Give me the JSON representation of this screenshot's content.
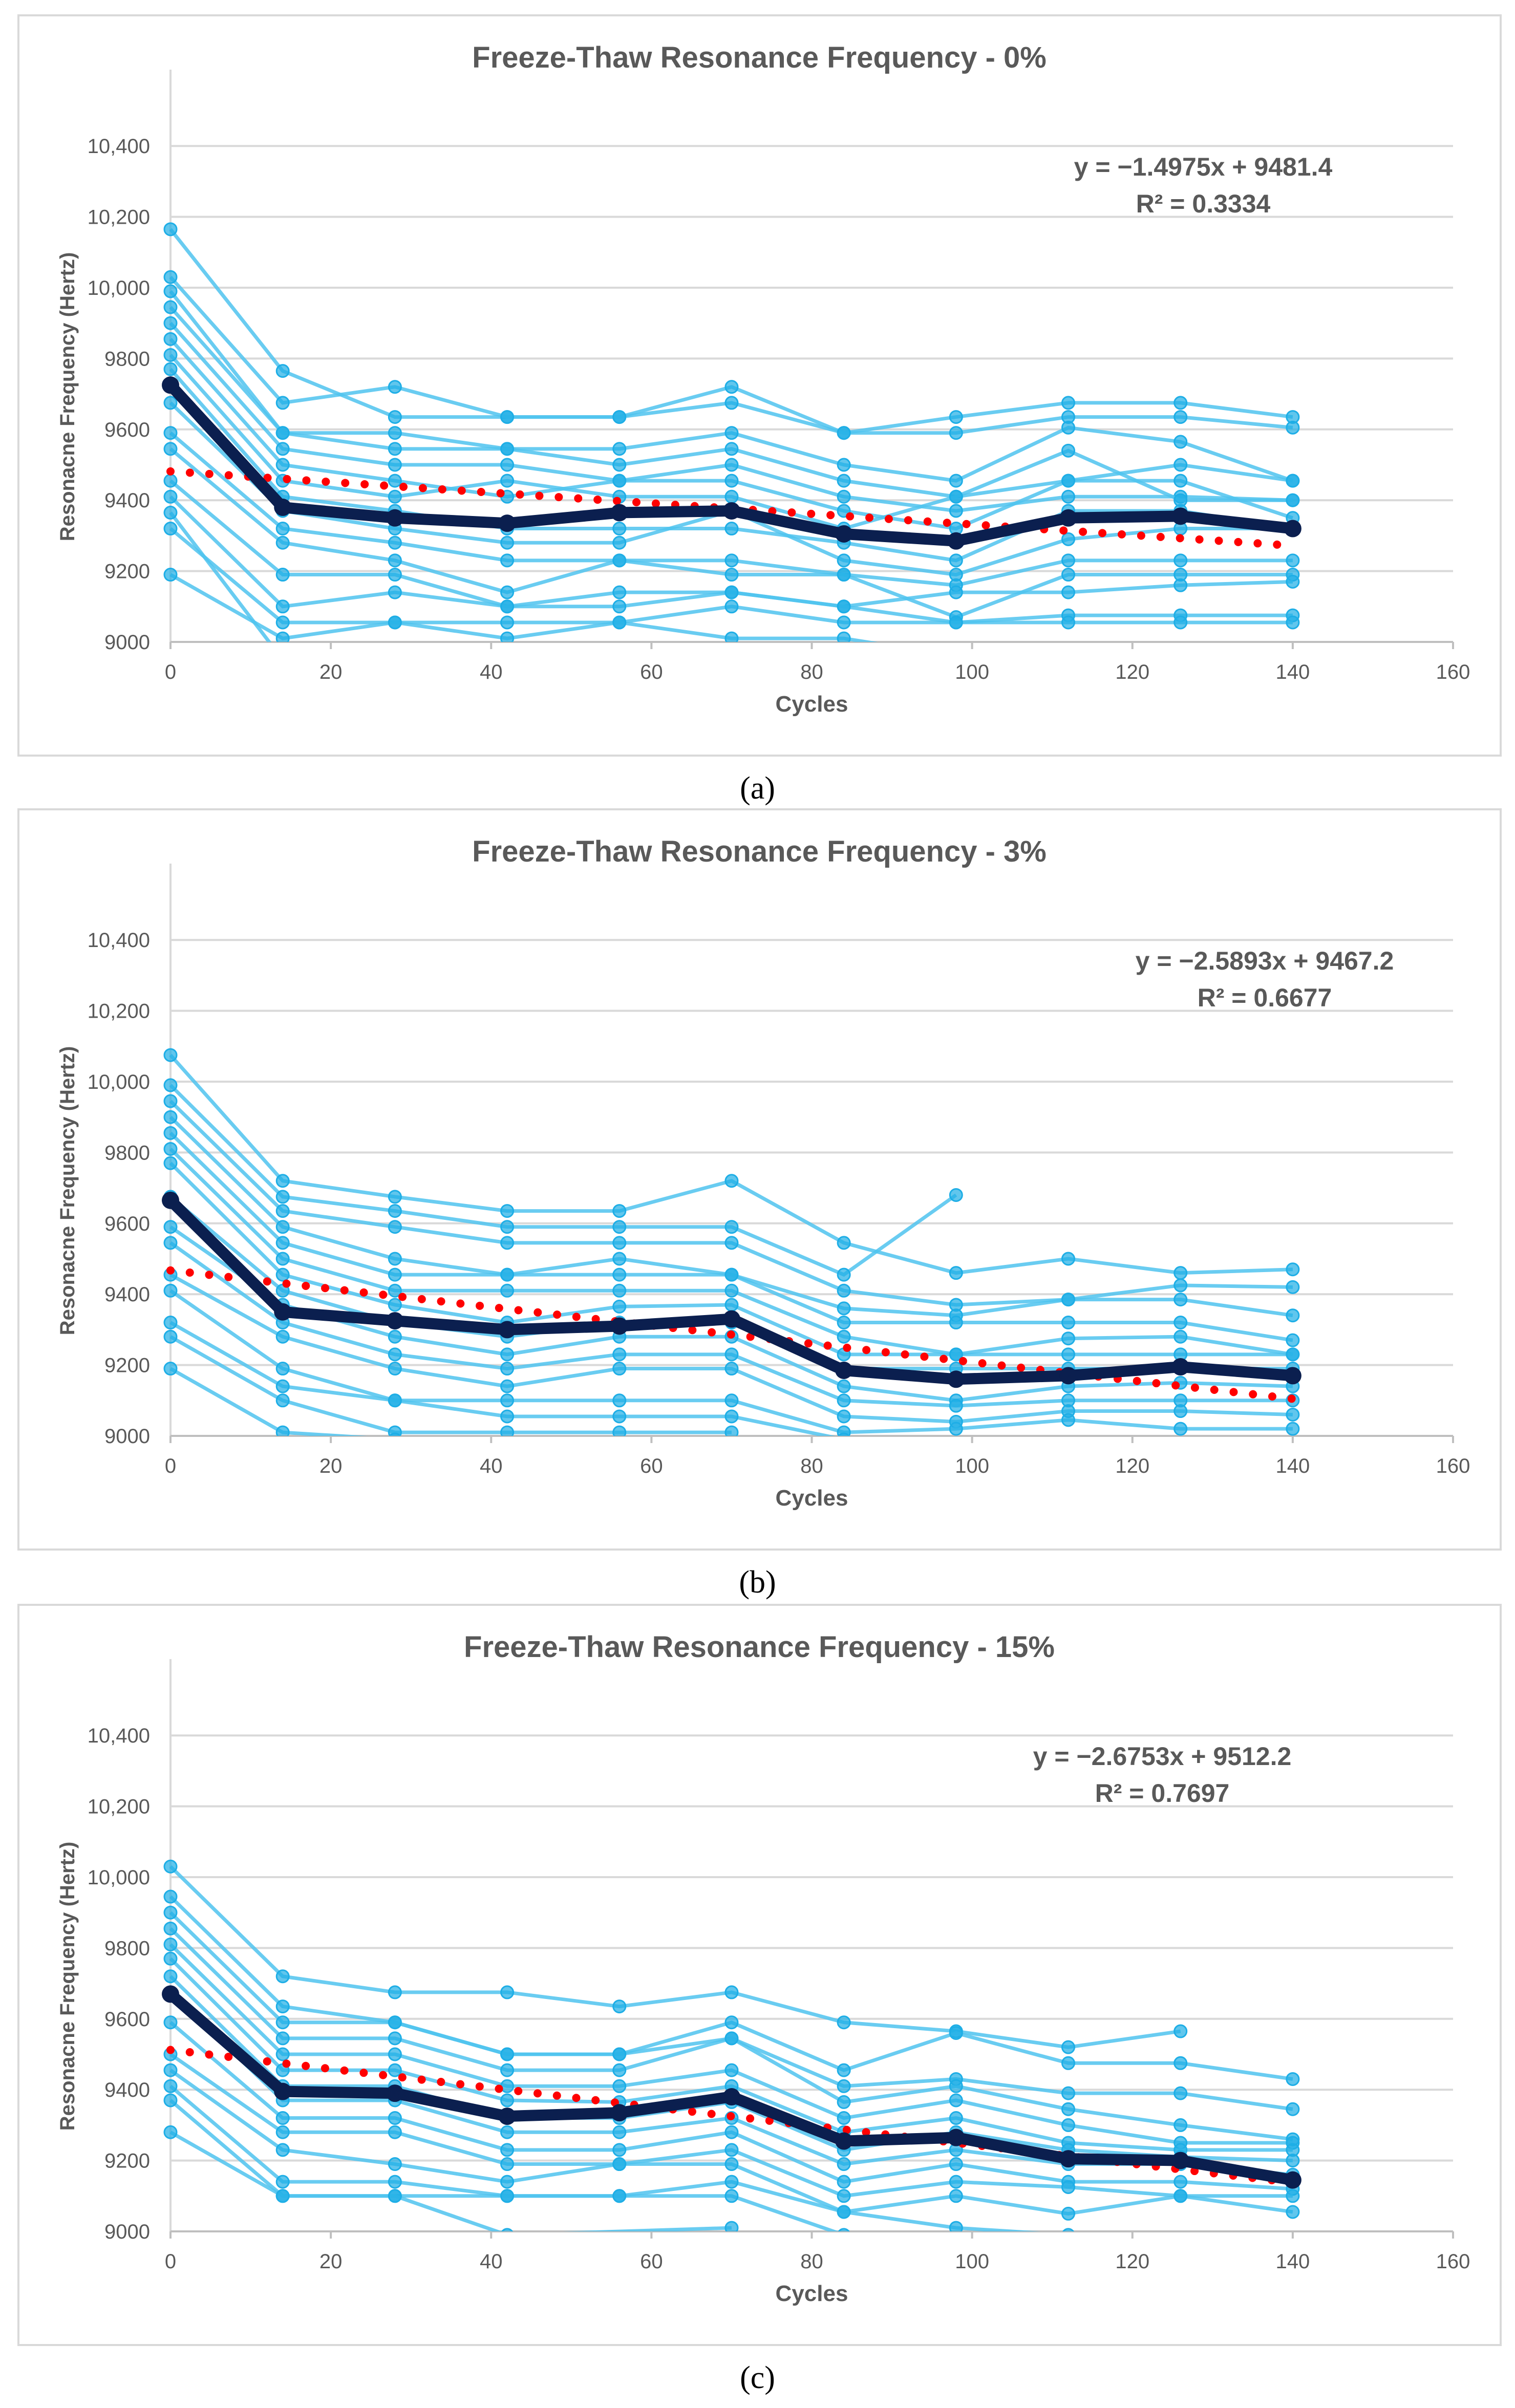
{
  "chart_data": [
    {
      "type": "line",
      "title": "Freeze-Thaw Resonance Frequency - 0%",
      "xlabel": "Cycles",
      "ylabel": "Resonacne Frequency (Hertz)",
      "xlim": [
        0,
        160
      ],
      "ylim": [
        9000,
        10500
      ],
      "xticks": [
        "0",
        "20",
        "40",
        "60",
        "80",
        "100",
        "120",
        "140",
        "160"
      ],
      "yticks": [
        "9000",
        "9200",
        "9400",
        "9600",
        "9800",
        "10,000",
        "10,200",
        "10,400"
      ],
      "grid": true,
      "caption": "(a)",
      "trend_label": "y = −1.4975x + 9481.4",
      "r2_label": "R² = 0.3334",
      "trend": {
        "slope": -1.4975,
        "intercept": 9481.4
      },
      "x": [
        0,
        14,
        28,
        42,
        56,
        70,
        84,
        98,
        112,
        126,
        140
      ],
      "mean": [
        9725,
        9380,
        9350,
        9335,
        9365,
        9370,
        9305,
        9285,
        9350,
        9355,
        9320
      ],
      "series": [
        [
          10165,
          9765,
          9635,
          9635,
          9635,
          9720,
          9590,
          9635,
          9675,
          9675,
          9635
        ],
        [
          10030,
          9675,
          9720,
          9635,
          9635,
          9675,
          9590,
          9590,
          9635,
          9635,
          9605
        ],
        [
          9990,
          9590,
          9590,
          9545,
          9545,
          9590,
          9500,
          9455,
          9605,
          9565,
          9455
        ],
        [
          9945,
          9590,
          9545,
          9545,
          9500,
          9545,
          9455,
          9410,
          9455,
          9500,
          9455
        ],
        [
          9900,
          9545,
          9500,
          9500,
          9455,
          9500,
          9410,
          9370,
          9410,
          9410,
          9400
        ],
        [
          9855,
          9500,
          9455,
          9410,
          9455,
          9455,
          9370,
          9320,
          9455,
          9455,
          9350
        ],
        [
          9810,
          9455,
          9410,
          9455,
          9410,
          9410,
          9320,
          9410,
          9540,
          9400,
          9400
        ],
        [
          9770,
          9410,
          9370,
          9320,
          9320,
          9320,
          9280,
          9230,
          9370,
          9370,
          9320
        ],
        [
          9675,
          9370,
          9320,
          9280,
          9280,
          9370,
          9230,
          9190,
          9290,
          9320,
          9320
        ],
        [
          9590,
          9320,
          9280,
          9230,
          9230,
          9230,
          9190,
          9160,
          9230,
          9230,
          9230
        ],
        [
          9545,
          9280,
          9230,
          9140,
          9230,
          9190,
          9190,
          9070,
          9190,
          9190,
          9190
        ],
        [
          9455,
          9190,
          9190,
          9100,
          9140,
          9140,
          9100,
          9140,
          9140,
          9160,
          9170
        ],
        [
          9410,
          9100,
          9140,
          9100,
          9100,
          9140,
          9100,
          9055,
          9075,
          9075,
          9075
        ],
        [
          9320,
          9055,
          9055,
          9055,
          9055,
          9100,
          9055,
          9055,
          9055,
          9055,
          9055
        ],
        [
          9190,
          9010,
          9055,
          9010,
          9055,
          9010,
          9010,
          8960,
          null,
          null,
          null
        ],
        [
          9365,
          8950,
          null,
          null,
          null,
          null,
          null,
          null,
          null,
          null,
          null
        ]
      ]
    },
    {
      "type": "line",
      "title": "Freeze-Thaw Resonance Frequency - 3%",
      "xlabel": "Cycles",
      "ylabel": "Resonacne Frequency (Hertz)",
      "xlim": [
        0,
        160
      ],
      "ylim": [
        9000,
        10500
      ],
      "xticks": [
        "0",
        "20",
        "40",
        "60",
        "80",
        "100",
        "120",
        "140",
        "160"
      ],
      "yticks": [
        "9000",
        "9200",
        "9400",
        "9600",
        "9800",
        "10,000",
        "10,200",
        "10,400"
      ],
      "grid": true,
      "caption": "(b)",
      "trend_label": "y = −2.5893x + 9467.2",
      "r2_label": "R² = 0.6677",
      "trend": {
        "slope": -2.5893,
        "intercept": 9467.2
      },
      "x": [
        0,
        14,
        28,
        42,
        56,
        70,
        84,
        98,
        112,
        126,
        140
      ],
      "mean": [
        9665,
        9350,
        9325,
        9300,
        9310,
        9330,
        9185,
        9160,
        9170,
        9195,
        9170
      ],
      "series": [
        [
          10075,
          9720,
          9675,
          9635,
          9635,
          9720,
          9545,
          9460,
          9500,
          9460,
          9470
        ],
        [
          9990,
          9675,
          9635,
          9590,
          9590,
          9590,
          9455,
          9680,
          null,
          null,
          null
        ],
        [
          9945,
          9635,
          9590,
          9545,
          9545,
          9545,
          9410,
          9370,
          9385,
          9425,
          9420
        ],
        [
          9900,
          9590,
          9500,
          9455,
          9500,
          9455,
          9360,
          9340,
          9385,
          9385,
          9340
        ],
        [
          9855,
          9545,
          9455,
          9455,
          9455,
          9455,
          9320,
          9320,
          9320,
          9320,
          9270
        ],
        [
          9810,
          9500,
          9410,
          9410,
          9410,
          9410,
          9280,
          9230,
          9275,
          9280,
          9230
        ],
        [
          9770,
          9455,
          9370,
          9320,
          9365,
          9370,
          9230,
          9230,
          9230,
          9230,
          9230
        ],
        [
          9675,
          9410,
          9320,
          9280,
          9320,
          9320,
          9190,
          9190,
          9190,
          9190,
          9190
        ],
        [
          9590,
          9370,
          9280,
          9230,
          9280,
          9280,
          9140,
          9100,
          9140,
          9150,
          9140
        ],
        [
          9545,
          9320,
          9230,
          9190,
          9230,
          9230,
          9100,
          9085,
          9100,
          9100,
          9100
        ],
        [
          9455,
          9280,
          9190,
          9140,
          9190,
          9190,
          9055,
          9040,
          9070,
          9070,
          9060
        ],
        [
          9410,
          9190,
          9100,
          9100,
          9100,
          9100,
          9010,
          9020,
          9045,
          9020,
          9020
        ],
        [
          9320,
          9140,
          9100,
          9055,
          9055,
          9055,
          8990,
          null,
          null,
          null,
          null
        ],
        [
          9280,
          9100,
          9010,
          9010,
          9010,
          9010,
          null,
          null,
          null,
          null,
          null
        ],
        [
          9190,
          9010,
          8990,
          null,
          null,
          null,
          null,
          null,
          null,
          null,
          null
        ]
      ]
    },
    {
      "type": "line",
      "title": "Freeze-Thaw Resonance Frequency - 15%",
      "xlabel": "Cycles",
      "ylabel": "Resonacne Frequency (Hertz)",
      "xlim": [
        0,
        160
      ],
      "ylim": [
        9000,
        10500
      ],
      "xticks": [
        "0",
        "20",
        "40",
        "60",
        "80",
        "100",
        "120",
        "140",
        "160"
      ],
      "yticks": [
        "9000",
        "9200",
        "9400",
        "9600",
        "9800",
        "10,000",
        "10,200",
        "10,400"
      ],
      "grid": true,
      "caption": "(c)",
      "trend_label": "y = −2.6753x + 9512.2",
      "r2_label": "R² = 0.7697",
      "trend": {
        "slope": -2.6753,
        "intercept": 9512.2
      },
      "x": [
        0,
        14,
        28,
        42,
        56,
        70,
        84,
        98,
        112,
        126,
        140
      ],
      "mean": [
        9670,
        9395,
        9390,
        9325,
        9335,
        9380,
        9255,
        9265,
        9205,
        9200,
        9145
      ],
      "series": [
        [
          10030,
          9720,
          9675,
          9675,
          9635,
          9675,
          9590,
          9565,
          9520,
          9565,
          null
        ],
        [
          9945,
          9635,
          9590,
          9500,
          9500,
          9590,
          9455,
          9560,
          9475,
          9475,
          9430
        ],
        [
          9900,
          9590,
          9590,
          9500,
          9500,
          9545,
          9410,
          9430,
          9390,
          9390,
          9345
        ],
        [
          9855,
          9545,
          9545,
          9455,
          9455,
          9545,
          9365,
          9410,
          9345,
          9300,
          9260
        ],
        [
          9810,
          9500,
          9500,
          9410,
          9410,
          9455,
          9320,
          9370,
          9300,
          9250,
          9250
        ],
        [
          9770,
          9455,
          9455,
          9370,
          9365,
          9410,
          9280,
          9320,
          9250,
          9230,
          9230
        ],
        [
          9720,
          9410,
          9410,
          9320,
          9320,
          9365,
          9230,
          9280,
          9230,
          9210,
          9200
        ],
        [
          9675,
          9370,
          9370,
          9280,
          9280,
          9320,
          9190,
          9230,
          9190,
          9190,
          9160
        ],
        [
          9590,
          9320,
          9320,
          9230,
          9230,
          9280,
          9140,
          9190,
          9140,
          9140,
          9120
        ],
        [
          9500,
          9280,
          9280,
          9190,
          9190,
          9230,
          9100,
          9140,
          9125,
          9100,
          9100
        ],
        [
          9455,
          9230,
          9190,
          9140,
          9190,
          9190,
          9055,
          9100,
          9050,
          9100,
          9055
        ],
        [
          9410,
          9140,
          9140,
          9100,
          9100,
          9140,
          9055,
          9010,
          8990,
          null,
          null
        ],
        [
          9370,
          9100,
          9100,
          9100,
          9100,
          9100,
          8990,
          null,
          null,
          null,
          null
        ],
        [
          9280,
          9100,
          9100,
          8990,
          null,
          9010,
          null,
          null,
          null,
          null,
          null
        ]
      ]
    }
  ],
  "colors": {
    "specimen": "#4fc3ee",
    "specimen_marker": "#1eaee6",
    "mean": "#0b1f4f",
    "trend": "#ff0000",
    "grid": "#d9d9d9",
    "text": "#595959"
  }
}
